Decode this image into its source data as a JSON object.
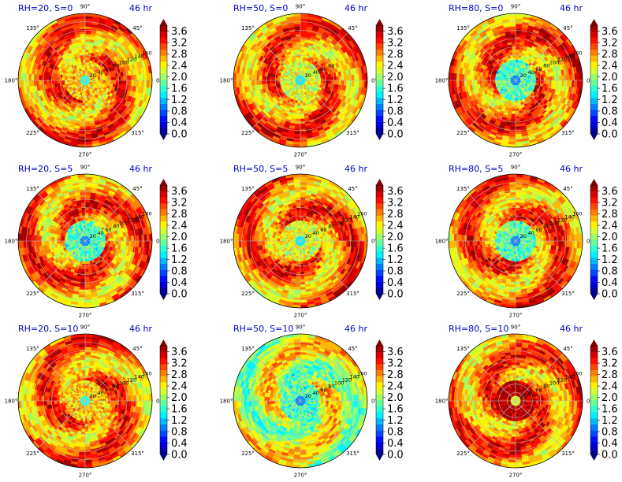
{
  "chart_data": {
    "type": "heatmap",
    "projection": "polar",
    "grid": true,
    "theta_ticks_deg": [
      0,
      45,
      90,
      135,
      180,
      225,
      270,
      315
    ],
    "theta_tick_labels": [
      "0°",
      "45°",
      "90°",
      "135°",
      "180°",
      "225°",
      "270°",
      "315°"
    ],
    "r_ticks": [
      20,
      40,
      60,
      80,
      100,
      120,
      140,
      160
    ],
    "colorbar": {
      "min": 0.0,
      "max": 3.6,
      "ticks": [
        "0.0",
        "0.4",
        "0.8",
        "1.2",
        "1.6",
        "2.0",
        "2.4",
        "2.8",
        "3.2",
        "3.6"
      ],
      "colormap": "jet",
      "extend": "both"
    },
    "panels": [
      {
        "title": "RH=20, S=0",
        "time": "46 hr",
        "dominant": "high",
        "core": "mixed",
        "shown_r_labels": 8
      },
      {
        "title": "RH=50, S=0",
        "time": "46 hr",
        "dominant": "high",
        "core": "yellow",
        "shown_r_labels": 4
      },
      {
        "title": "RH=80, S=0",
        "time": "46 hr",
        "dominant": "high",
        "core": "cyan",
        "shown_r_labels": 8
      },
      {
        "title": "RH=20, S=5",
        "time": "46 hr",
        "dominant": "high",
        "core": "cyan",
        "shown_r_labels": 8
      },
      {
        "title": "RH=50, S=5",
        "time": "46 hr",
        "dominant": "high",
        "core": "yellow",
        "shown_r_labels": 8
      },
      {
        "title": "RH=80, S=5",
        "time": "46 hr",
        "dominant": "high",
        "core": "cyan",
        "shown_r_labels": 8
      },
      {
        "title": "RH=20, S=10",
        "time": "46 hr",
        "dominant": "high",
        "core": "mixed",
        "shown_r_labels": 8
      },
      {
        "title": "RH=50, S=10",
        "time": "46 hr",
        "dominant": "mid",
        "core": "cyan",
        "shown_r_labels": 8
      },
      {
        "title": "RH=80, S=10",
        "time": "46 hr",
        "dominant": "high",
        "core": "dark",
        "shown_r_labels": 8
      }
    ]
  }
}
